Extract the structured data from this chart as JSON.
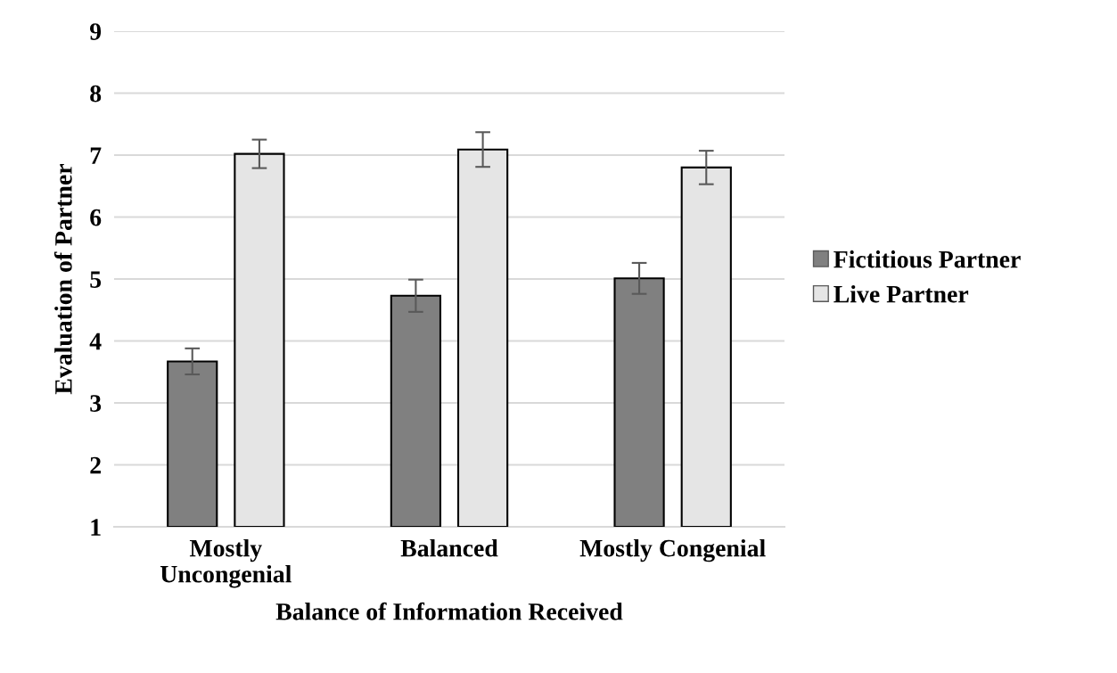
{
  "chart_data": {
    "type": "bar",
    "xlabel": "Balance of Information Received",
    "ylabel": "Evaluation of Partner",
    "categories": [
      "Mostly\nUncongenial",
      "Balanced",
      "Mostly Congenial"
    ],
    "series": [
      {
        "name": "Fictitious Partner",
        "color": "#808080",
        "values": [
          3.67,
          4.73,
          5.01
        ],
        "errors": [
          0.21,
          0.26,
          0.25
        ]
      },
      {
        "name": "Live Partner",
        "color": "#e5e5e5",
        "values": [
          7.02,
          7.09,
          6.8
        ],
        "errors": [
          0.23,
          0.28,
          0.27
        ]
      }
    ],
    "ylim": [
      1,
      9
    ],
    "yticks": [
      1,
      2,
      3,
      4,
      5,
      6,
      7,
      8,
      9
    ],
    "grid": "y",
    "legend": "right"
  }
}
